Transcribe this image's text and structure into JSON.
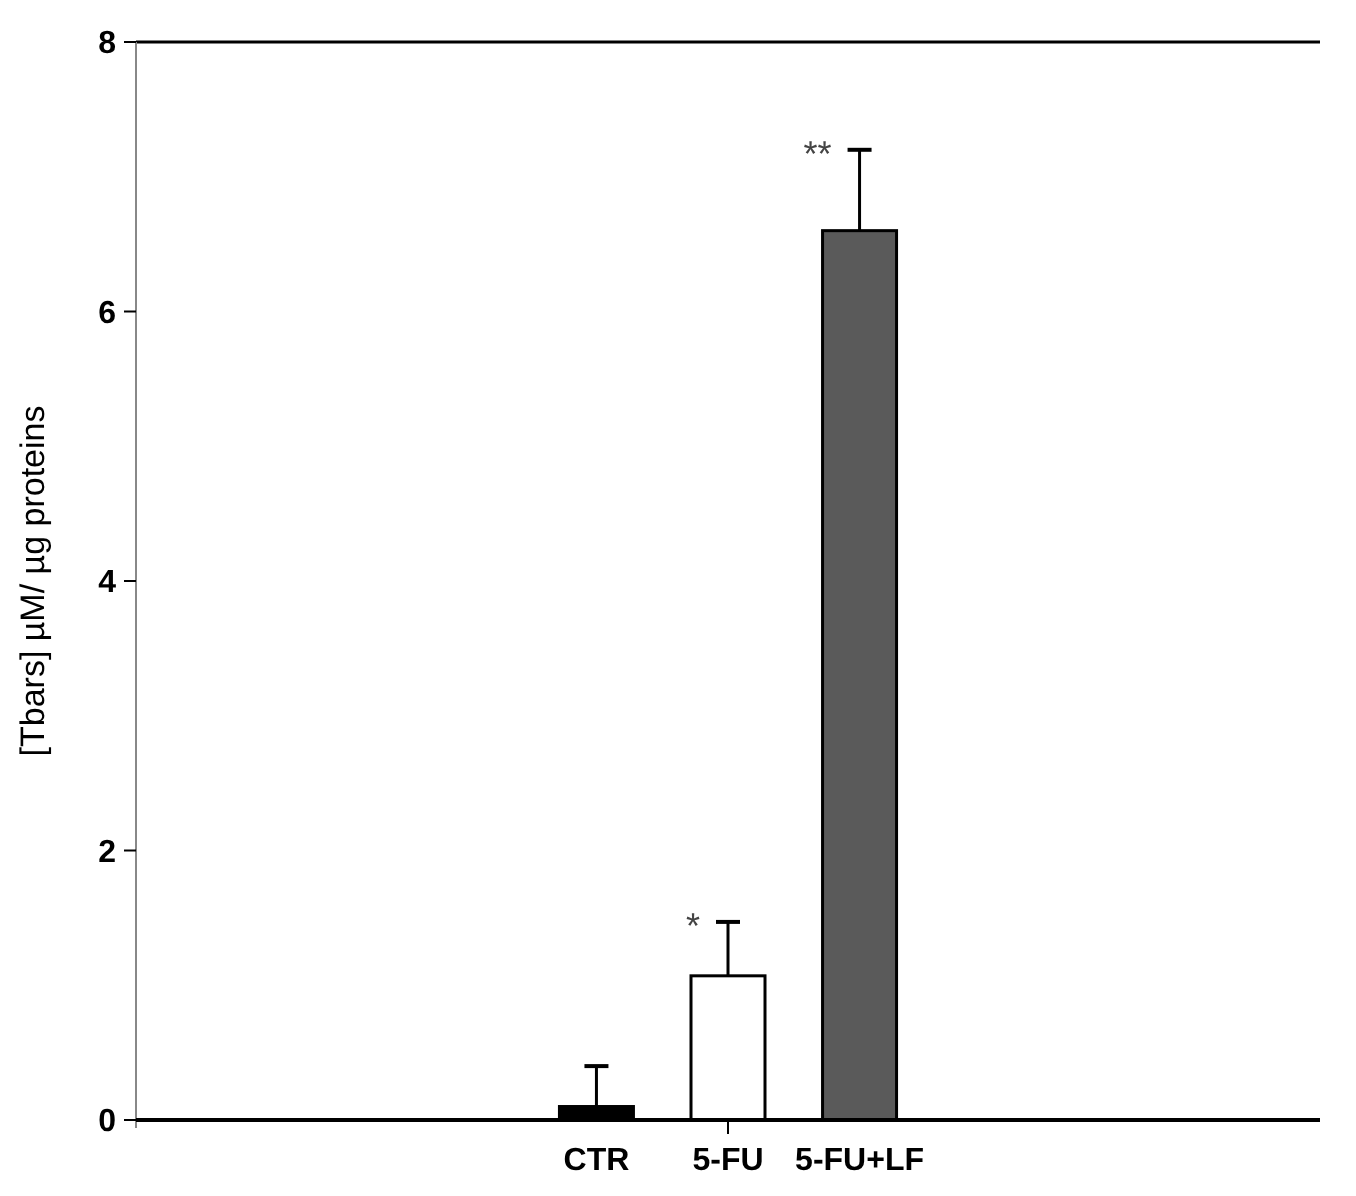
{
  "chart_data": {
    "type": "bar",
    "ylabel": "[Tbars] µM/ µg proteins",
    "categories": [
      null,
      null,
      null,
      "CTR",
      "5-FU",
      "5-FU+LF",
      null,
      null,
      null
    ],
    "values": [
      null,
      null,
      null,
      0.1,
      1.07,
      6.6,
      null,
      null,
      null
    ],
    "colors": [
      null,
      null,
      null,
      "#000000",
      "#ffffff",
      "#5a5a5a",
      null,
      null,
      null
    ],
    "errors": [
      null,
      null,
      null,
      [
        0.1,
        0.4
      ],
      [
        1.07,
        1.47
      ],
      [
        6.6,
        7.2
      ],
      null,
      null,
      null
    ],
    "ylim": [
      0,
      8
    ],
    "yticks": [
      0,
      2,
      4,
      6,
      8
    ],
    "grid": false,
    "annotations": [
      {
        "text": "*",
        "x": "5-FU",
        "y": 1.47
      },
      {
        "text": "**",
        "x": "5-FU+LF",
        "y": 7.2
      }
    ]
  }
}
